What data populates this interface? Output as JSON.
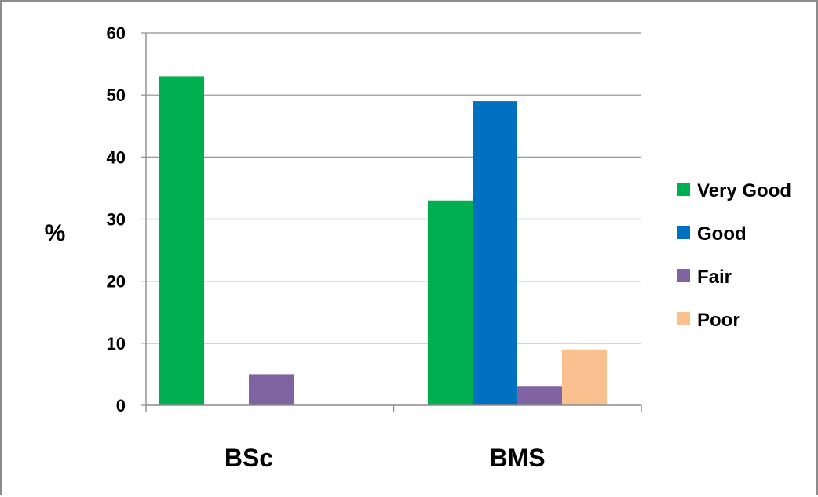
{
  "chart_data": {
    "type": "bar",
    "categories": [
      "BSc",
      "BMS"
    ],
    "series": [
      {
        "name": "Very Good",
        "values": [
          53,
          33
        ],
        "color": "#00B050"
      },
      {
        "name": "Good",
        "values": [
          0,
          49
        ],
        "color": "#0070C0"
      },
      {
        "name": "Fair",
        "values": [
          5,
          3
        ],
        "color": "#8064A2"
      },
      {
        "name": "Poor",
        "values": [
          0,
          9
        ],
        "color": "#FAC090"
      }
    ],
    "title": "",
    "xlabel": "",
    "ylabel": "%",
    "ylim": [
      0,
      60
    ],
    "yticks": [
      "0",
      "10",
      "20",
      "30",
      "40",
      "50",
      "60"
    ],
    "grid": true,
    "legend_position": "right"
  }
}
